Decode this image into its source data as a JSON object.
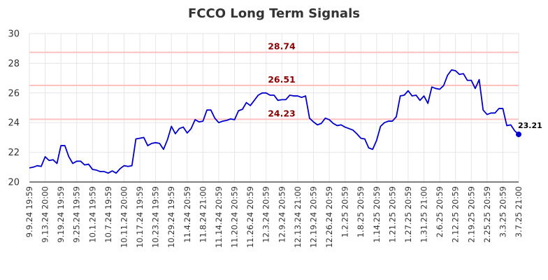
{
  "chart_data": {
    "type": "line",
    "title": "FCCO Long Term Signals",
    "xlabel": "",
    "ylabel": "",
    "ylim": [
      20,
      30
    ],
    "yticks": [
      "20",
      "22",
      "24",
      "26",
      "28",
      "30"
    ],
    "grid": true,
    "xtick_labels": [
      "9.9.24 19:59",
      "9.13.24 20:00",
      "9.19.24 19:59",
      "9.25.24 19:59",
      "10.1.24 19:59",
      "10.7.24 19:59",
      "10.11.24 20:00",
      "10.17.24 19:59",
      "10.23.24 19:59",
      "10.29.24 19:59",
      "11.4.24 20:59",
      "11.8.24 21:00",
      "11.14.24 20:59",
      "11.20.24 20:59",
      "11.26.24 20:59",
      "12.3.24 20:59",
      "12.9.24 20:59",
      "12.13.24 21:00",
      "12.19.24 20:59",
      "12.26.24 20:59",
      "1.2.25 20:59",
      "1.8.25 20:59",
      "1.14.25 20:59",
      "1.21.25 20:59",
      "1.27.25 20:59",
      "1.31.25 21:00",
      "2.6.25 20:59",
      "2.12.25 20:59",
      "2.19.25 20:59",
      "2.25.25 20:59",
      "3.3.25 20:59",
      "3.7.25 21:00"
    ],
    "reference_lines": [
      {
        "value": 28.74,
        "label": "28.74"
      },
      {
        "value": 26.51,
        "label": "26.51"
      },
      {
        "value": 24.23,
        "label": "24.23"
      }
    ],
    "last_value_label": "23.21",
    "series": [
      {
        "values": [
          20.95,
          21.0,
          21.1,
          21.05,
          21.7,
          21.45,
          21.5,
          21.25,
          22.45,
          22.45,
          21.7,
          21.25,
          21.4,
          21.4,
          21.15,
          21.2,
          20.85,
          20.8,
          20.7,
          20.7,
          20.6,
          20.75,
          20.6,
          20.9,
          21.1,
          21.05,
          21.1,
          22.9,
          22.95,
          23.0,
          22.45,
          22.6,
          22.65,
          22.6,
          22.2,
          22.85,
          23.75,
          23.25,
          23.6,
          23.7,
          23.3,
          23.6,
          24.2,
          24.05,
          24.1,
          24.85,
          24.85,
          24.3,
          24.0,
          24.1,
          24.15,
          24.25,
          24.2,
          24.8,
          24.9,
          25.35,
          25.15,
          25.5,
          25.85,
          26.0,
          26.0,
          25.85,
          25.85,
          25.5,
          25.55,
          25.55,
          25.85,
          25.8,
          25.8,
          25.7,
          25.8,
          24.3,
          24.05,
          23.85,
          23.95,
          24.3,
          24.2,
          23.95,
          23.8,
          23.85,
          23.7,
          23.6,
          23.5,
          23.25,
          22.95,
          22.9,
          22.3,
          22.2,
          22.8,
          23.75,
          24.0,
          24.1,
          24.1,
          24.4,
          25.8,
          25.85,
          26.15,
          25.8,
          25.85,
          25.5,
          25.8,
          25.3,
          26.4,
          26.3,
          26.25,
          26.5,
          27.2,
          27.55,
          27.5,
          27.25,
          27.3,
          26.85,
          26.85,
          26.3,
          26.9,
          24.85,
          24.55,
          24.65,
          24.65,
          24.95,
          24.95,
          23.8,
          23.85,
          23.45,
          23.21
        ]
      }
    ]
  }
}
